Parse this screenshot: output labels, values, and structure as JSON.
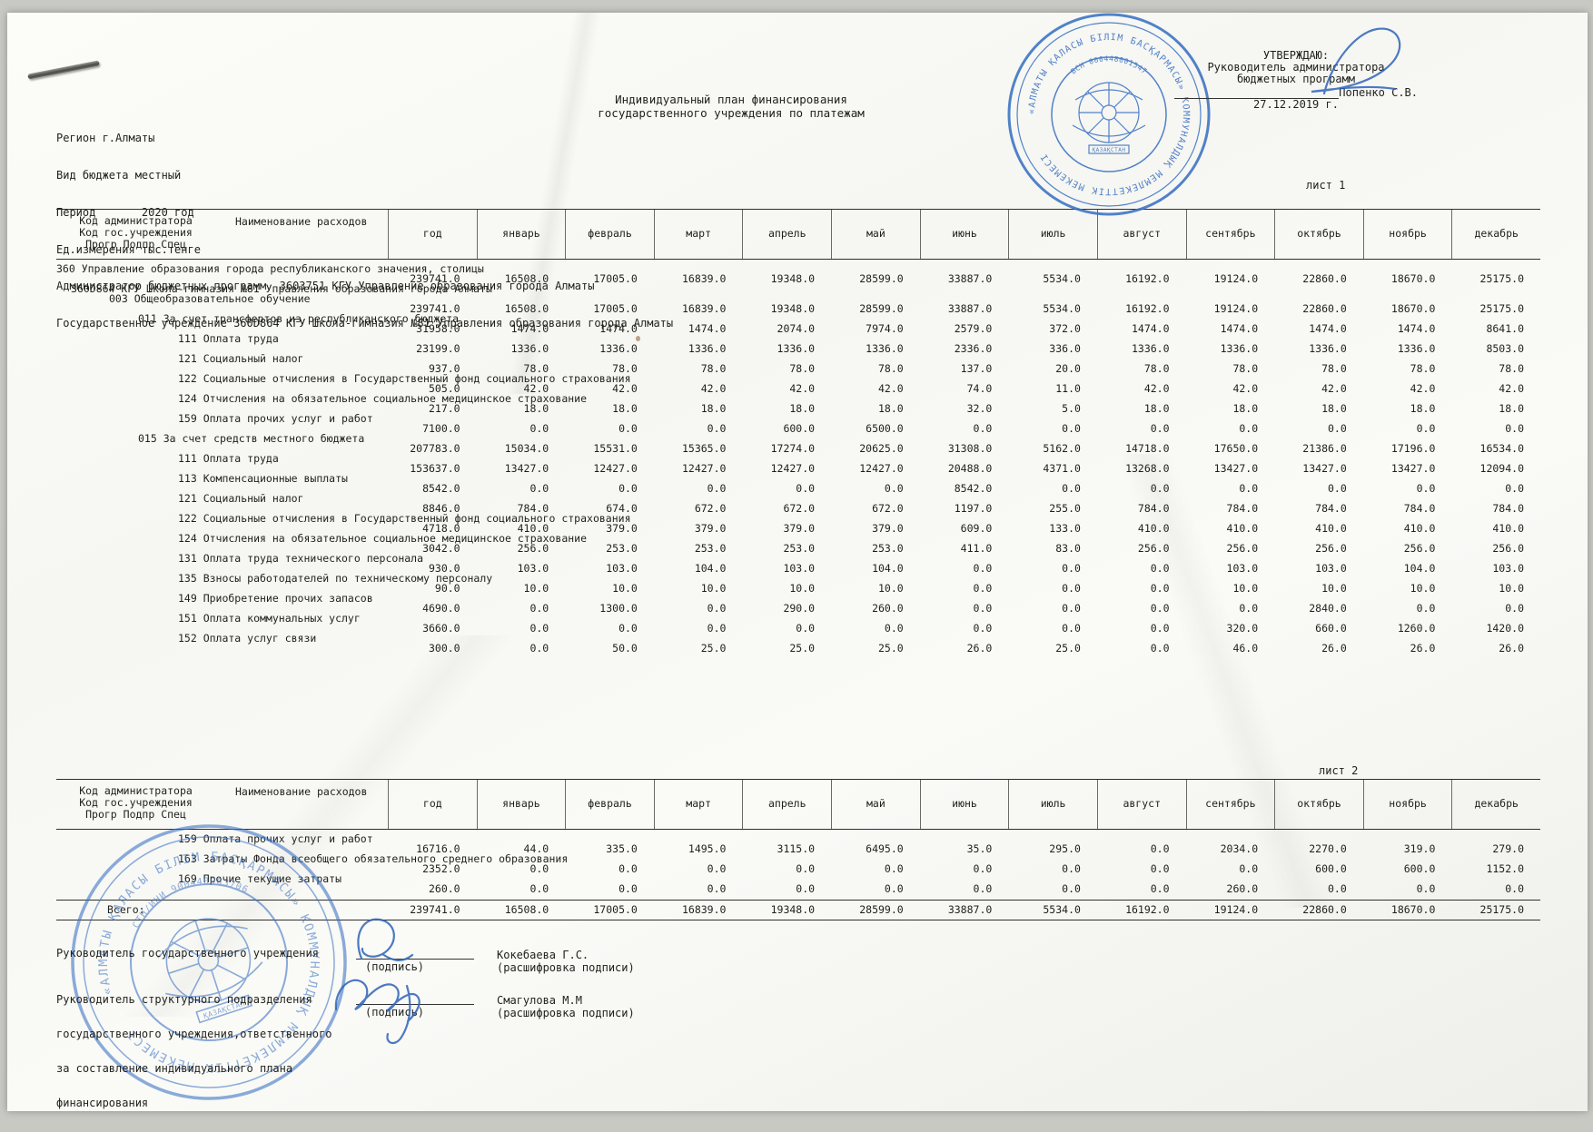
{
  "document": {
    "title_line1": "Индивидуальный план финансирования",
    "title_line2": "государственного учреждения  по платежам",
    "meta": [
      "Регион г.Алматы",
      "Вид бюджета местный",
      "Период       2020 год",
      "Ед.измерения тыс.тенге",
      "Администратор бюджетных программ  3603751 КГУ Управление образования города Алматы",
      "Государственное учреждение 360D864 КГУ Школа-гимназия №81 Управления образования города Алматы"
    ],
    "sheet1_label": "лист 1",
    "sheet2_label": "лист 2"
  },
  "approval": {
    "heading": "УТВЕРЖДАЮ:",
    "role1": "Руководитель администратора",
    "role2": "бюджетных программ",
    "name": "Попенко С.В.",
    "date": "27.12.2019 г."
  },
  "table_header": {
    "col1_line1": "Код администратора",
    "col1_line2": "Код гос.учреждения",
    "col1_line3": "Прогр Подпр Спец",
    "col2": "Наименование расходов",
    "months": [
      "год",
      "январь",
      "февраль",
      "март",
      "апрель",
      "май",
      "июнь",
      "июль",
      "август",
      "сентябрь",
      "октябрь",
      "ноябрь",
      "декабрь"
    ]
  },
  "sheet1": {
    "rows": [
      {
        "label": "360 Управление образования города республиканского значения, столицы",
        "indent": 0,
        "values": [
          "239741.0",
          "16508.0",
          "17005.0",
          "16839.0",
          "19348.0",
          "28599.0",
          "33887.0",
          "5534.0",
          "16192.0",
          "19124.0",
          "22860.0",
          "18670.0",
          "25175.0"
        ]
      },
      {
        "label": "360D864 КГУ Школа-гимназия №81 Управления образования города Алматы",
        "indent": 1,
        "values": null
      },
      {
        "label": "003 Общеобразовательное обучение",
        "indent": 2,
        "values": [
          "239741.0",
          "16508.0",
          "17005.0",
          "16839.0",
          "19348.0",
          "28599.0",
          "33887.0",
          "5534.0",
          "16192.0",
          "19124.0",
          "22860.0",
          "18670.0",
          "25175.0"
        ]
      },
      {
        "label": "011 За счет трансфертов из республиканского бюджета",
        "indent": 3,
        "values": [
          "31958.0",
          "1474.0",
          "1474.0",
          "1474.0",
          "2074.0",
          "7974.0",
          "2579.0",
          "372.0",
          "1474.0",
          "1474.0",
          "1474.0",
          "1474.0",
          "8641.0"
        ]
      },
      {
        "label": "111 Оплата труда",
        "indent": 4,
        "values": [
          "23199.0",
          "1336.0",
          "1336.0",
          "1336.0",
          "1336.0",
          "1336.0",
          "2336.0",
          "336.0",
          "1336.0",
          "1336.0",
          "1336.0",
          "1336.0",
          "8503.0"
        ]
      },
      {
        "label": "121 Социальный налог",
        "indent": 4,
        "values": [
          "937.0",
          "78.0",
          "78.0",
          "78.0",
          "78.0",
          "78.0",
          "137.0",
          "20.0",
          "78.0",
          "78.0",
          "78.0",
          "78.0",
          "78.0"
        ]
      },
      {
        "label": "122 Социальные отчисления в Государственный фонд социального страхования",
        "indent": 4,
        "values": [
          "505.0",
          "42.0",
          "42.0",
          "42.0",
          "42.0",
          "42.0",
          "74.0",
          "11.0",
          "42.0",
          "42.0",
          "42.0",
          "42.0",
          "42.0"
        ]
      },
      {
        "label": "124 Отчисления на обязательное социальное медицинское страхование",
        "indent": 4,
        "values": [
          "217.0",
          "18.0",
          "18.0",
          "18.0",
          "18.0",
          "18.0",
          "32.0",
          "5.0",
          "18.0",
          "18.0",
          "18.0",
          "18.0",
          "18.0"
        ]
      },
      {
        "label": "159 Оплата прочих услуг и работ",
        "indent": 4,
        "values": [
          "7100.0",
          "0.0",
          "0.0",
          "0.0",
          "600.0",
          "6500.0",
          "0.0",
          "0.0",
          "0.0",
          "0.0",
          "0.0",
          "0.0",
          "0.0"
        ]
      },
      {
        "label": "015 За счет средств местного бюджета",
        "indent": 3,
        "values": [
          "207783.0",
          "15034.0",
          "15531.0",
          "15365.0",
          "17274.0",
          "20625.0",
          "31308.0",
          "5162.0",
          "14718.0",
          "17650.0",
          "21386.0",
          "17196.0",
          "16534.0"
        ]
      },
      {
        "label": "111 Оплата труда",
        "indent": 4,
        "values": [
          "153637.0",
          "13427.0",
          "12427.0",
          "12427.0",
          "12427.0",
          "12427.0",
          "20488.0",
          "4371.0",
          "13268.0",
          "13427.0",
          "13427.0",
          "13427.0",
          "12094.0"
        ]
      },
      {
        "label": "113 Компенсационные выплаты",
        "indent": 4,
        "values": [
          "8542.0",
          "0.0",
          "0.0",
          "0.0",
          "0.0",
          "0.0",
          "8542.0",
          "0.0",
          "0.0",
          "0.0",
          "0.0",
          "0.0",
          "0.0"
        ]
      },
      {
        "label": "121 Социальный налог",
        "indent": 4,
        "values": [
          "8846.0",
          "784.0",
          "674.0",
          "672.0",
          "672.0",
          "672.0",
          "1197.0",
          "255.0",
          "784.0",
          "784.0",
          "784.0",
          "784.0",
          "784.0"
        ]
      },
      {
        "label": "122 Социальные отчисления в Государственный фонд социального страхования",
        "indent": 4,
        "values": [
          "4718.0",
          "410.0",
          "379.0",
          "379.0",
          "379.0",
          "379.0",
          "609.0",
          "133.0",
          "410.0",
          "410.0",
          "410.0",
          "410.0",
          "410.0"
        ]
      },
      {
        "label": "124 Отчисления на обязательное социальное медицинское страхование",
        "indent": 4,
        "values": [
          "3042.0",
          "256.0",
          "253.0",
          "253.0",
          "253.0",
          "253.0",
          "411.0",
          "83.0",
          "256.0",
          "256.0",
          "256.0",
          "256.0",
          "256.0"
        ]
      },
      {
        "label": "131 Оплата труда технического персонала",
        "indent": 4,
        "values": [
          "930.0",
          "103.0",
          "103.0",
          "104.0",
          "103.0",
          "104.0",
          "0.0",
          "0.0",
          "0.0",
          "103.0",
          "103.0",
          "104.0",
          "103.0"
        ]
      },
      {
        "label": "135 Взносы работодателей по техническому персоналу",
        "indent": 4,
        "values": [
          "90.0",
          "10.0",
          "10.0",
          "10.0",
          "10.0",
          "10.0",
          "0.0",
          "0.0",
          "0.0",
          "10.0",
          "10.0",
          "10.0",
          "10.0"
        ]
      },
      {
        "label": "149 Приобретение прочих запасов",
        "indent": 4,
        "values": [
          "4690.0",
          "0.0",
          "1300.0",
          "0.0",
          "290.0",
          "260.0",
          "0.0",
          "0.0",
          "0.0",
          "0.0",
          "2840.0",
          "0.0",
          "0.0"
        ]
      },
      {
        "label": "151 Оплата коммунальных услуг",
        "indent": 4,
        "values": [
          "3660.0",
          "0.0",
          "0.0",
          "0.0",
          "0.0",
          "0.0",
          "0.0",
          "0.0",
          "0.0",
          "320.0",
          "660.0",
          "1260.0",
          "1420.0"
        ]
      },
      {
        "label": "152 Оплата услуг связи",
        "indent": 4,
        "values": [
          "300.0",
          "0.0",
          "50.0",
          "25.0",
          "25.0",
          "25.0",
          "26.0",
          "25.0",
          "0.0",
          "46.0",
          "26.0",
          "26.0",
          "26.0"
        ]
      }
    ]
  },
  "sheet2": {
    "rows": [
      {
        "label": "159 Оплата прочих услуг и работ",
        "indent": 4,
        "values": [
          "16716.0",
          "44.0",
          "335.0",
          "1495.0",
          "3115.0",
          "6495.0",
          "35.0",
          "295.0",
          "0.0",
          "2034.0",
          "2270.0",
          "319.0",
          "279.0"
        ]
      },
      {
        "label": "163 Затраты Фонда всеобщего обязательного среднего образования",
        "indent": 4,
        "values": [
          "2352.0",
          "0.0",
          "0.0",
          "0.0",
          "0.0",
          "0.0",
          "0.0",
          "0.0",
          "0.0",
          "0.0",
          "600.0",
          "600.0",
          "1152.0"
        ]
      },
      {
        "label": "169 Прочие текущие затраты",
        "indent": 4,
        "values": [
          "260.0",
          "0.0",
          "0.0",
          "0.0",
          "0.0",
          "0.0",
          "0.0",
          "0.0",
          "0.0",
          "260.0",
          "0.0",
          "0.0",
          "0.0"
        ]
      }
    ],
    "total": {
      "label": "Всего:",
      "values": [
        "239741.0",
        "16508.0",
        "17005.0",
        "16839.0",
        "19348.0",
        "28599.0",
        "33887.0",
        "5534.0",
        "16192.0",
        "19124.0",
        "22860.0",
        "18670.0",
        "25175.0"
      ]
    }
  },
  "signatures": {
    "sig1": {
      "role": "Руководитель государственного учреждения",
      "sign_caption": "(подпись)",
      "name": "Кокебаева Г.С.",
      "name_caption": "(расшифровка подписи)"
    },
    "sig2": {
      "role_line1": "Руководитель структурного подразделения",
      "role_line2": "государственного учреждения,ответственного",
      "role_line3": "за составление индивидуального плана",
      "role_line4": "финансирования",
      "sign_caption": "(подпись)",
      "name": "Смагулова М.М",
      "name_caption": "(расшифровка подписи)"
    }
  },
  "stamps": {
    "top": {
      "ring_text": "«АЛМАТЫ ҚАЛАСЫ БІЛІМ БАСҚАРМАСЫ» КОММУНАЛДЫҚ МЕМЛЕКЕТТІК МЕКЕМЕСІ",
      "bsn": "БСН 000448001547",
      "center_text": "ҚАЗАҚСТАН",
      "color": "#3a72c4"
    },
    "bottom": {
      "ring_text": "«АЛМАТЫ ҚАЛАСЫ БІЛІМ БАСҚАРМАСЫ» КОММУНАЛДЫҚ МЕМЛЕКЕТТІК МЕКЕМЕСІ",
      "stn": "СТН/ИНИ 900440063706",
      "center_text": "ҚАЗАҚСТАН",
      "color": "#3a72c4"
    }
  }
}
